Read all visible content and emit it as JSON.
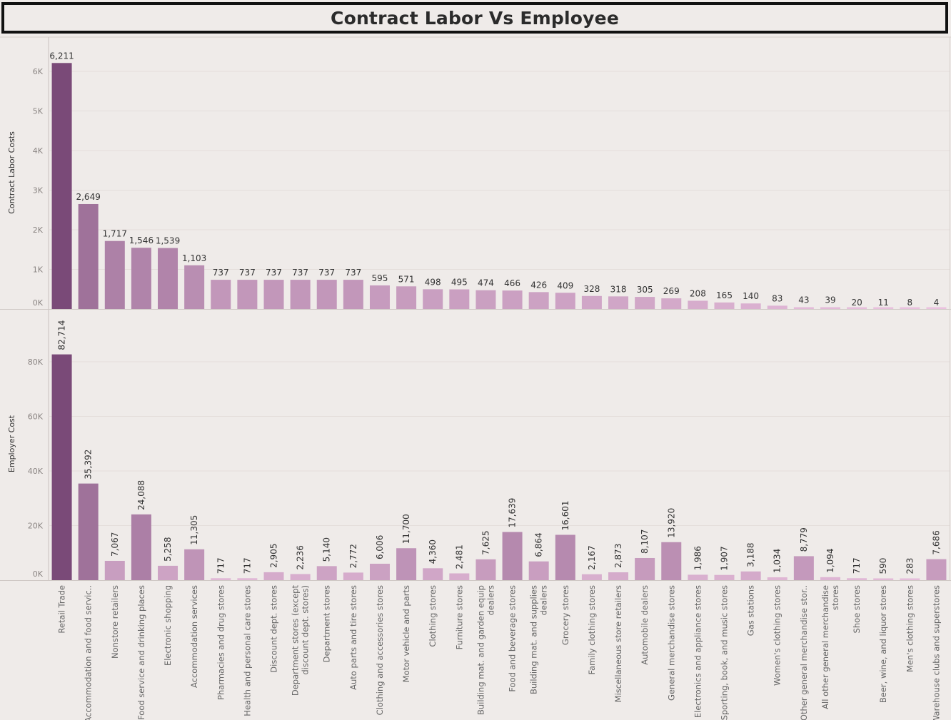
{
  "title": "Contract Labor Vs Employee",
  "colors": {
    "background": "#efebe9",
    "ramp_dark": "#7a4a78",
    "ramp_light": "#efc7e3"
  },
  "chart_data": [
    {
      "type": "bar",
      "ylabel": "Contract Labor Costs",
      "ylim": [
        0,
        6700
      ],
      "yticks": [
        0,
        1000,
        2000,
        3000,
        4000,
        5000,
        6000
      ],
      "yticklabels": [
        "0K",
        "1K",
        "2K",
        "3K",
        "4K",
        "5K",
        "6K"
      ],
      "grid": true,
      "data_label_rotation": "horizontal",
      "values": [
        6211,
        2649,
        1717,
        1546,
        1539,
        1103,
        737,
        737,
        737,
        737,
        737,
        737,
        595,
        571,
        498,
        495,
        474,
        466,
        426,
        409,
        328,
        318,
        305,
        269,
        208,
        165,
        140,
        83,
        43,
        39,
        20,
        11,
        8,
        4
      ],
      "value_labels": [
        "6,211",
        "2,649",
        "1,717",
        "1,546",
        "1,539",
        "1,103",
        "737",
        "737",
        "737",
        "737",
        "737",
        "737",
        "595",
        "571",
        "498",
        "495",
        "474",
        "466",
        "426",
        "409",
        "328",
        "318",
        "305",
        "269",
        "208",
        "165",
        "140",
        "83",
        "43",
        "39",
        "20",
        "11",
        "8",
        "4"
      ]
    },
    {
      "type": "bar",
      "ylabel": "Employer Cost",
      "ylim": [
        0,
        91000
      ],
      "yticks": [
        0,
        20000,
        40000,
        60000,
        80000
      ],
      "yticklabels": [
        "0K",
        "20K",
        "40K",
        "60K",
        "80K"
      ],
      "grid": true,
      "data_label_rotation": "vertical",
      "values": [
        82714,
        35392,
        7067,
        24088,
        5258,
        11305,
        717,
        717,
        2905,
        2236,
        5140,
        2772,
        6006,
        11700,
        4360,
        2481,
        7625,
        17639,
        6864,
        16601,
        2167,
        2873,
        8107,
        13920,
        1986,
        1907,
        3188,
        1034,
        8779,
        1094,
        717,
        590,
        283,
        7686
      ],
      "value_labels": [
        "82,714",
        "35,392",
        "7,067",
        "24,088",
        "5,258",
        "11,305",
        "717",
        "717",
        "2,905",
        "2,236",
        "5,140",
        "2,772",
        "6,006",
        "11,700",
        "4,360",
        "2,481",
        "7,625",
        "17,639",
        "6,864",
        "16,601",
        "2,167",
        "2,873",
        "8,107",
        "13,920",
        "1,986",
        "1,907",
        "3,188",
        "1,034",
        "8,779",
        "1,094",
        "717",
        "590",
        "283",
        "7,686"
      ]
    }
  ],
  "categories": [
    [
      "Retail Trade"
    ],
    [
      "Accommodation and food servic.."
    ],
    [
      "Nonstore retailers"
    ],
    [
      "Food service and drinking places"
    ],
    [
      "Electronic shopping"
    ],
    [
      "Accommodation services"
    ],
    [
      "Pharmacies and drug stores"
    ],
    [
      "Health and personal care stores"
    ],
    [
      "Discount dept. stores"
    ],
    [
      "Department stores (except",
      "discount dept. stores)"
    ],
    [
      "Department stores"
    ],
    [
      "Auto parts and tire stores"
    ],
    [
      "Clothing and accessories stores"
    ],
    [
      "Motor vehicle and parts"
    ],
    [
      "Clothing stores"
    ],
    [
      "Furniture stores"
    ],
    [
      "Building mat. and garden equip",
      "dealers"
    ],
    [
      "Food and beverage stores"
    ],
    [
      "Building mat. and supplies",
      "dealers"
    ],
    [
      "Grocery stores"
    ],
    [
      "Family clothing stores"
    ],
    [
      "Miscellaneous store retailers"
    ],
    [
      "Automobile dealers"
    ],
    [
      "General merchandise stores"
    ],
    [
      "Electronics and appliance stores"
    ],
    [
      "Sporting, book, and  music stores"
    ],
    [
      "Gas stations"
    ],
    [
      "Women's clothing stores"
    ],
    [
      "Other general merchandise stor.."
    ],
    [
      "All other general merchandise",
      "stores"
    ],
    [
      "Shoe stores"
    ],
    [
      "Beer, wine, and liquor stores"
    ],
    [
      "Men's clothing stores"
    ],
    [
      "Warehouse clubs and superstores"
    ]
  ]
}
